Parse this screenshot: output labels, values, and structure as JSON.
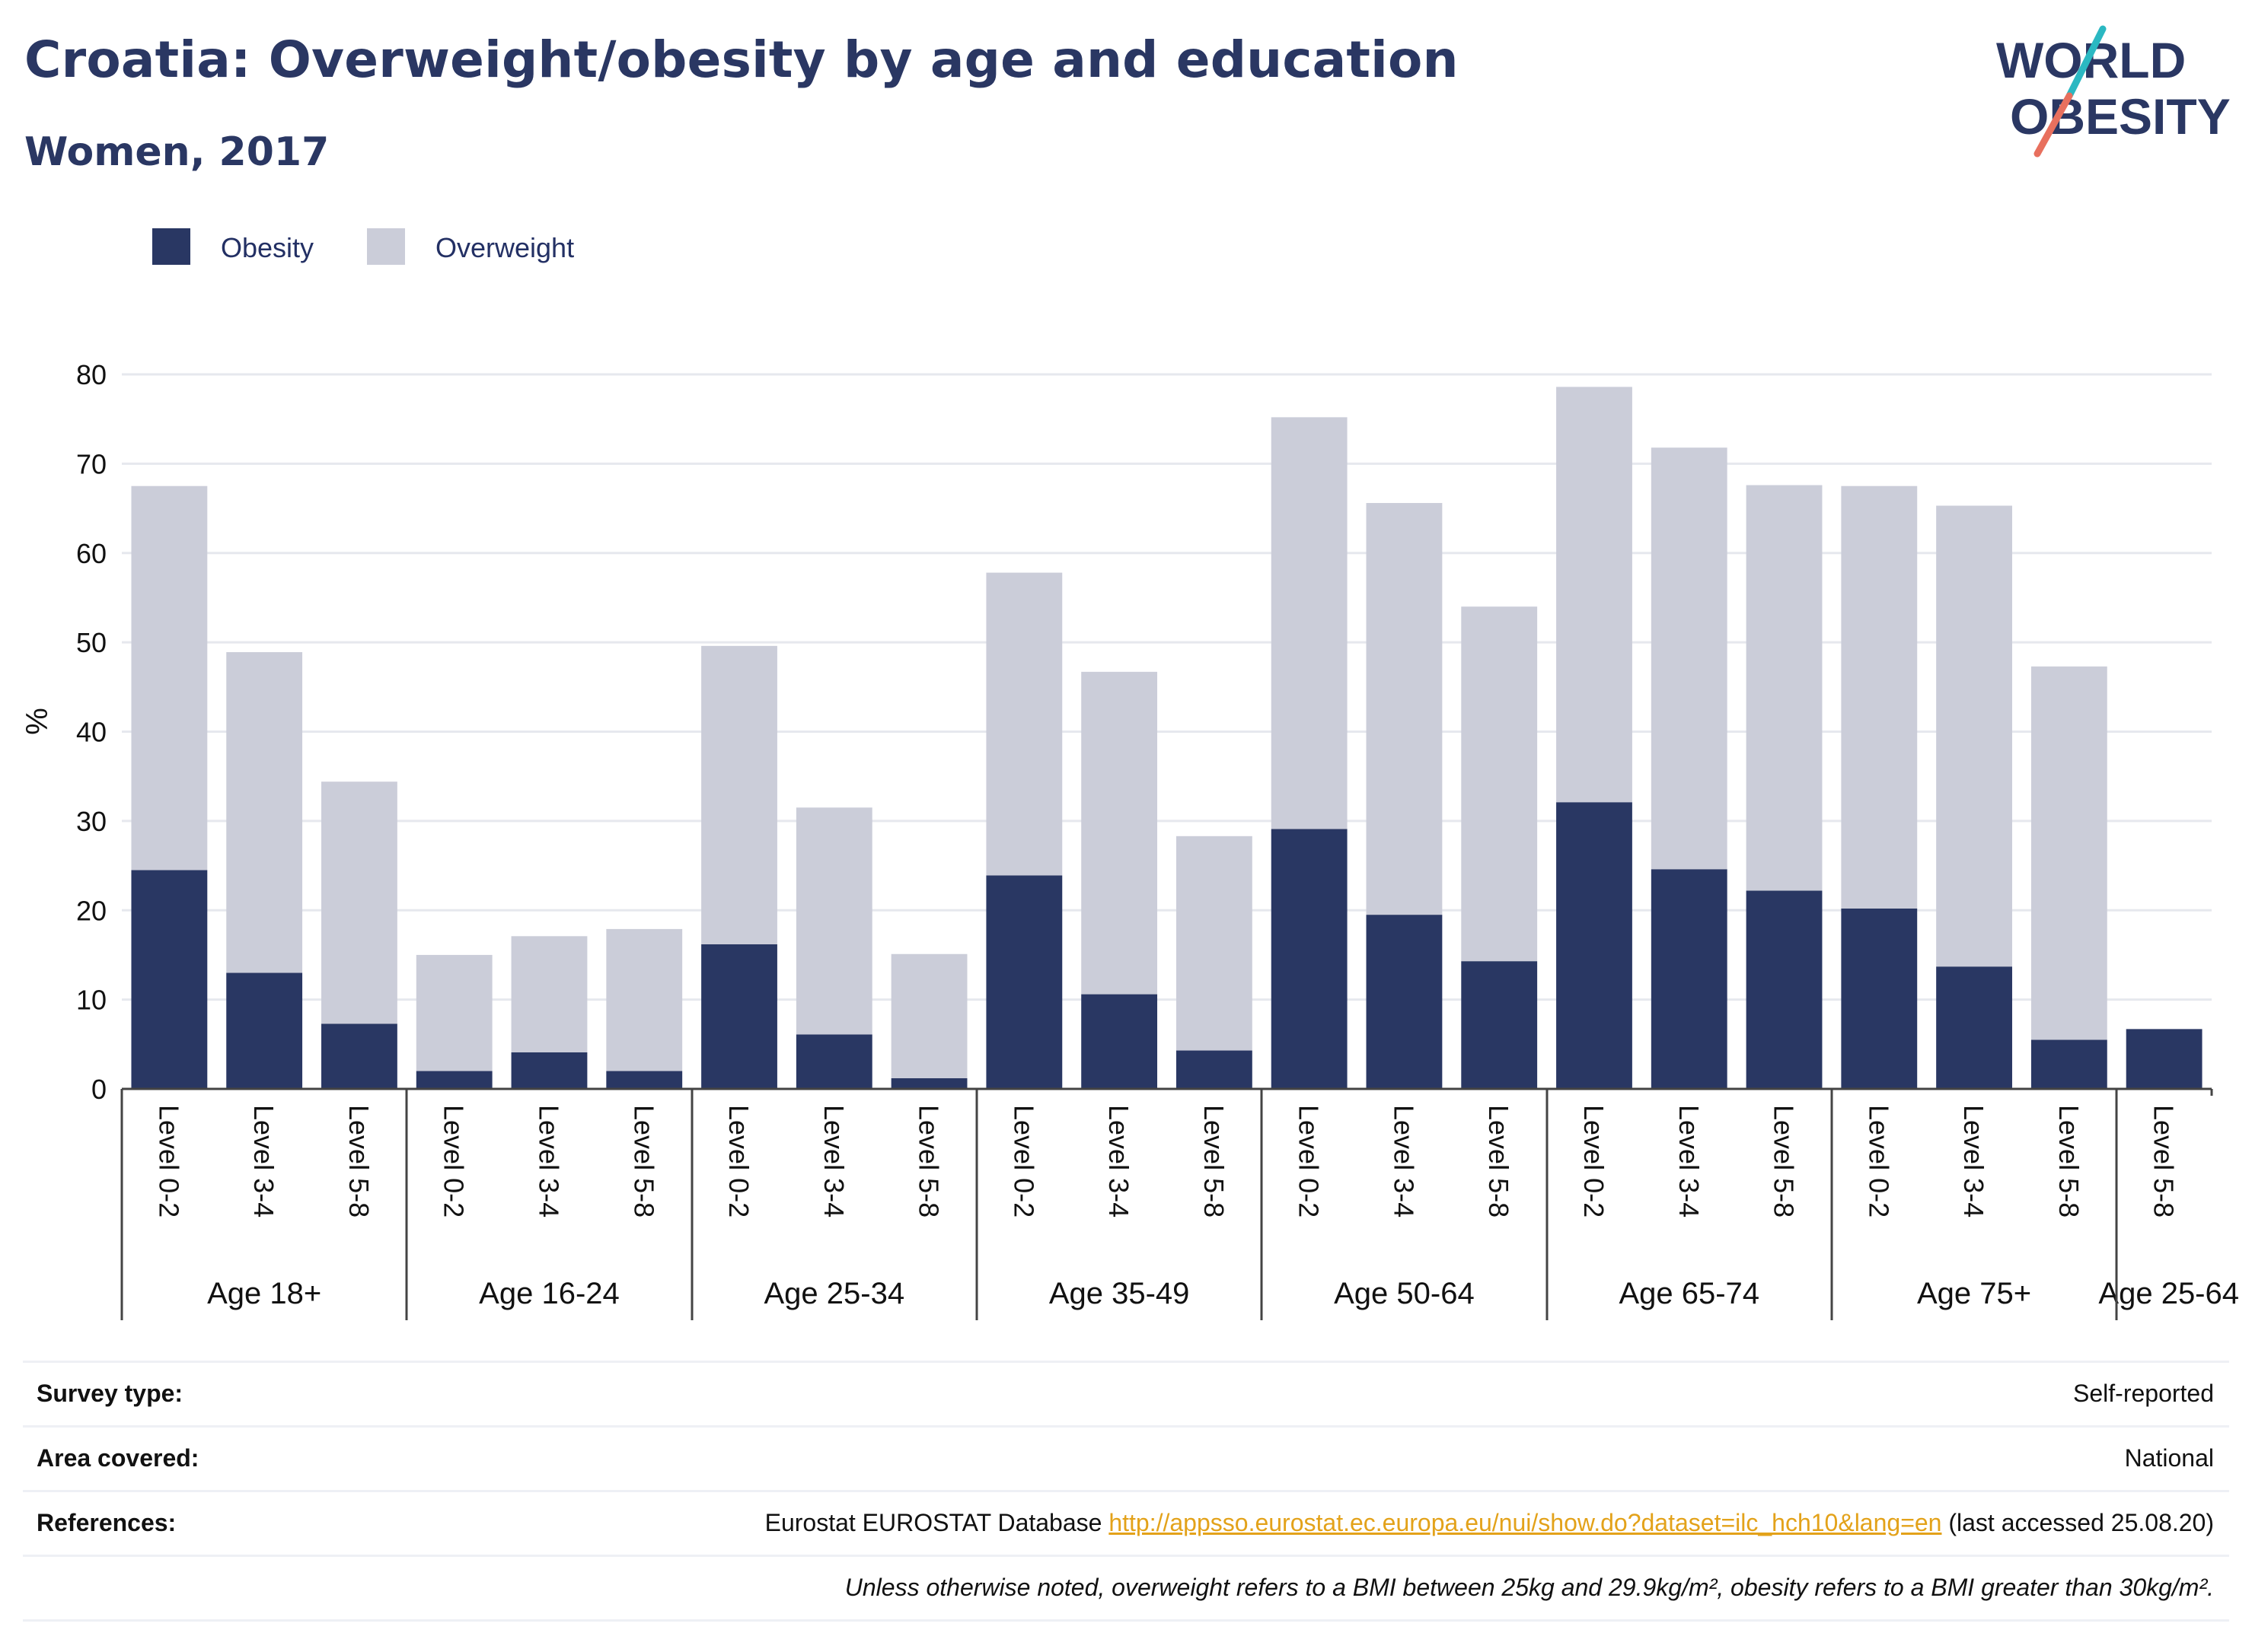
{
  "header": {
    "title": "Croatia: Overweight/obesity by age and education",
    "subtitle": "Women, 2017"
  },
  "logo": {
    "line1": "WORLD",
    "line2": "OBESITY",
    "slash_colors": [
      "#2bb8c2",
      "#e8705e"
    ]
  },
  "colors": {
    "obesity": "#293763",
    "overweight": "#cbcdd9",
    "grid": "#e6e8ee",
    "axis": "#444444"
  },
  "chart_data": {
    "type": "bar",
    "stacked": true,
    "ylabel": "%",
    "ylim": [
      0,
      80
    ],
    "yticks": [
      0,
      10,
      20,
      30,
      40,
      50,
      60,
      70,
      80
    ],
    "grid": true,
    "legend": {
      "position": "top-left",
      "entries": [
        "Obesity",
        "Overweight"
      ]
    },
    "groups": [
      {
        "label": "Age 18+",
        "categories": [
          "Level 0-2",
          "Level 3-4",
          "Level 5-8"
        ]
      },
      {
        "label": "Age 16-24",
        "categories": [
          "Level 0-2",
          "Level 3-4",
          "Level 5-8"
        ]
      },
      {
        "label": "Age 25-34",
        "categories": [
          "Level 0-2",
          "Level 3-4",
          "Level 5-8"
        ]
      },
      {
        "label": "Age 35-49",
        "categories": [
          "Level 0-2",
          "Level 3-4",
          "Level 5-8"
        ]
      },
      {
        "label": "Age 50-64",
        "categories": [
          "Level 0-2",
          "Level 3-4",
          "Level 5-8"
        ]
      },
      {
        "label": "Age 65-74",
        "categories": [
          "Level 0-2",
          "Level 3-4",
          "Level 5-8"
        ]
      },
      {
        "label": "Age 75+",
        "categories": [
          "Level 0-2",
          "Level 3-4",
          "Level 5-8"
        ]
      },
      {
        "label": "Age 25-64",
        "categories": [
          "Level 5-8"
        ]
      }
    ],
    "series": [
      {
        "name": "Obesity",
        "values": [
          24.5,
          13.0,
          7.3,
          2.0,
          4.1,
          2.0,
          16.2,
          6.1,
          1.2,
          23.9,
          10.6,
          4.3,
          29.1,
          19.5,
          14.3,
          32.1,
          24.6,
          22.2,
          20.2,
          13.7,
          5.5,
          6.7
        ]
      },
      {
        "name": "Overweight",
        "values": [
          43.0,
          35.9,
          27.1,
          13.0,
          13.0,
          15.9,
          33.4,
          25.4,
          13.9,
          33.9,
          36.1,
          24.0,
          46.1,
          46.1,
          39.7,
          46.5,
          47.2,
          45.4,
          47.3,
          51.6,
          41.8,
          0
        ]
      }
    ]
  },
  "footer": {
    "survey_type_label": "Survey type:",
    "survey_type_value": "Self-reported",
    "area_label": "Area covered:",
    "area_value": "National",
    "references_label": "References:",
    "references_prefix": "Eurostat EUROSTAT Database ",
    "references_link": "http://appsso.eurostat.ec.europa.eu/nui/show.do?dataset=ilc_hch10&lang=en",
    "references_suffix": " (last accessed 25.08.20)",
    "note": "Unless otherwise noted, overweight refers to a BMI between 25kg and 29.9kg/m², obesity refers to a BMI greater than 30kg/m²."
  }
}
